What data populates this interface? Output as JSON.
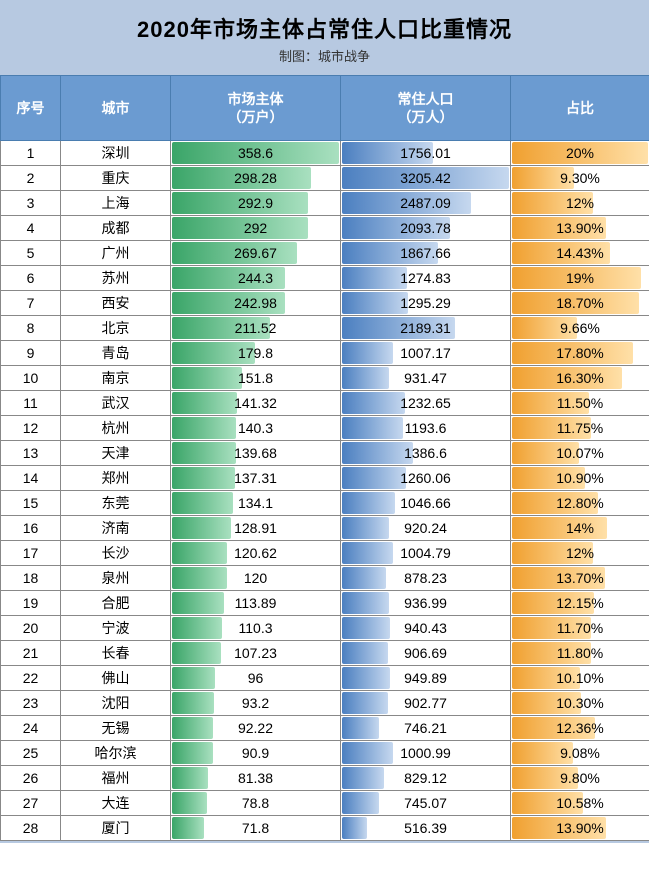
{
  "title": "2020年市场主体占常住人口比重情况",
  "subtitle": "制图：城市战争",
  "columns": {
    "index": "序号",
    "city": "城市",
    "entities": "市场主体\n（万户）",
    "population": "常住人口\n（万人）",
    "ratio": "占比"
  },
  "col_widths": {
    "index": 60,
    "city": 110,
    "entities": 170,
    "population": 170,
    "ratio": 139
  },
  "header_bg": "#6b9bd1",
  "header_fg": "#ffffff",
  "body_bg": "#ffffff",
  "container_bg": "#b7c9e1",
  "bar_colors": {
    "entities": {
      "from": "#3aa568",
      "to": "#a9e0c0"
    },
    "population": {
      "from": "#4b7fc0",
      "to": "#c6d8ef"
    },
    "ratio": {
      "from": "#f0a030",
      "to": "#ffe0a8"
    }
  },
  "maxima": {
    "entities": 358.6,
    "population": 3205.42,
    "ratio": 0.2
  },
  "rows": [
    {
      "i": 1,
      "city": "深圳",
      "entities": 358.6,
      "population": 1756.01,
      "ratio_num": 0.2,
      "ratio_txt": "20%"
    },
    {
      "i": 2,
      "city": "重庆",
      "entities": 298.28,
      "population": 3205.42,
      "ratio_num": 0.093,
      "ratio_txt": "9.30%"
    },
    {
      "i": 3,
      "city": "上海",
      "entities": 292.9,
      "population": 2487.09,
      "ratio_num": 0.12,
      "ratio_txt": "12%"
    },
    {
      "i": 4,
      "city": "成都",
      "entities": 292,
      "population": 2093.78,
      "ratio_num": 0.139,
      "ratio_txt": "13.90%"
    },
    {
      "i": 5,
      "city": "广州",
      "entities": 269.67,
      "population": 1867.66,
      "ratio_num": 0.1443,
      "ratio_txt": "14.43%"
    },
    {
      "i": 6,
      "city": "苏州",
      "entities": 244.3,
      "population": 1274.83,
      "ratio_num": 0.19,
      "ratio_txt": "19%"
    },
    {
      "i": 7,
      "city": "西安",
      "entities": 242.98,
      "population": 1295.29,
      "ratio_num": 0.187,
      "ratio_txt": "18.70%"
    },
    {
      "i": 8,
      "city": "北京",
      "entities": 211.52,
      "population": 2189.31,
      "ratio_num": 0.0966,
      "ratio_txt": "9.66%"
    },
    {
      "i": 9,
      "city": "青岛",
      "entities": 179.8,
      "population": 1007.17,
      "ratio_num": 0.178,
      "ratio_txt": "17.80%"
    },
    {
      "i": 10,
      "city": "南京",
      "entities": 151.8,
      "population": 931.47,
      "ratio_num": 0.163,
      "ratio_txt": "16.30%"
    },
    {
      "i": 11,
      "city": "武汉",
      "entities": 141.32,
      "population": 1232.65,
      "ratio_num": 0.115,
      "ratio_txt": "11.50%"
    },
    {
      "i": 12,
      "city": "杭州",
      "entities": 140.3,
      "population": 1193.6,
      "ratio_num": 0.1175,
      "ratio_txt": "11.75%"
    },
    {
      "i": 13,
      "city": "天津",
      "entities": 139.68,
      "population": 1386.6,
      "ratio_num": 0.1007,
      "ratio_txt": "10.07%"
    },
    {
      "i": 14,
      "city": "郑州",
      "entities": 137.31,
      "population": 1260.06,
      "ratio_num": 0.109,
      "ratio_txt": "10.90%"
    },
    {
      "i": 15,
      "city": "东莞",
      "entities": 134.1,
      "population": 1046.66,
      "ratio_num": 0.128,
      "ratio_txt": "12.80%"
    },
    {
      "i": 16,
      "city": "济南",
      "entities": 128.91,
      "population": 920.24,
      "ratio_num": 0.14,
      "ratio_txt": "14%"
    },
    {
      "i": 17,
      "city": "长沙",
      "entities": 120.62,
      "population": 1004.79,
      "ratio_num": 0.12,
      "ratio_txt": "12%"
    },
    {
      "i": 18,
      "city": "泉州",
      "entities": 120,
      "population": 878.23,
      "ratio_num": 0.137,
      "ratio_txt": "13.70%"
    },
    {
      "i": 19,
      "city": "合肥",
      "entities": 113.89,
      "population": 936.99,
      "ratio_num": 0.1215,
      "ratio_txt": "12.15%"
    },
    {
      "i": 20,
      "city": "宁波",
      "entities": 110.3,
      "population": 940.43,
      "ratio_num": 0.117,
      "ratio_txt": "11.70%"
    },
    {
      "i": 21,
      "city": "长春",
      "entities": 107.23,
      "population": 906.69,
      "ratio_num": 0.118,
      "ratio_txt": "11.80%"
    },
    {
      "i": 22,
      "city": "佛山",
      "entities": 96,
      "population": 949.89,
      "ratio_num": 0.101,
      "ratio_txt": "10.10%"
    },
    {
      "i": 23,
      "city": "沈阳",
      "entities": 93.2,
      "population": 902.77,
      "ratio_num": 0.103,
      "ratio_txt": "10.30%"
    },
    {
      "i": 24,
      "city": "无锡",
      "entities": 92.22,
      "population": 746.21,
      "ratio_num": 0.1236,
      "ratio_txt": "12.36%"
    },
    {
      "i": 25,
      "city": "哈尔滨",
      "entities": 90.9,
      "population": 1000.99,
      "ratio_num": 0.0908,
      "ratio_txt": "9.08%"
    },
    {
      "i": 26,
      "city": "福州",
      "entities": 81.38,
      "population": 829.12,
      "ratio_num": 0.098,
      "ratio_txt": "9.80%"
    },
    {
      "i": 27,
      "city": "大连",
      "entities": 78.8,
      "population": 745.07,
      "ratio_num": 0.1058,
      "ratio_txt": "10.58%"
    },
    {
      "i": 28,
      "city": "厦门",
      "entities": 71.8,
      "population": 516.39,
      "ratio_num": 0.139,
      "ratio_txt": "13.90%"
    }
  ]
}
